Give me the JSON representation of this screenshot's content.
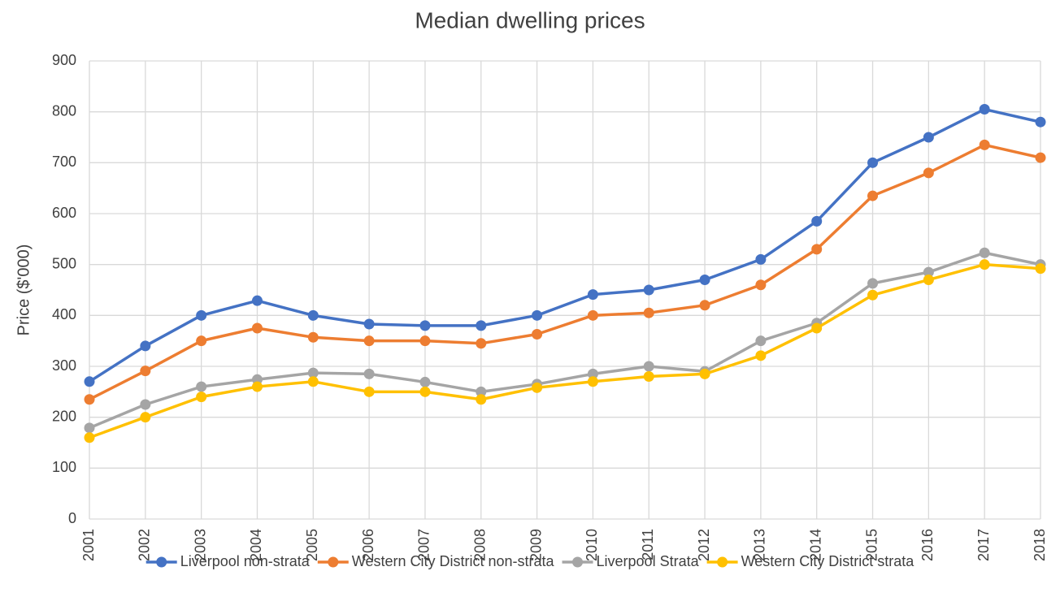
{
  "chart_data": {
    "type": "line",
    "title": "Median dwelling prices",
    "y_label": "Price ($'000)",
    "categories": [
      "2001",
      "2002",
      "2003",
      "2004",
      "2005",
      "2006",
      "2007",
      "2008",
      "2009",
      "2010",
      "2011",
      "2012",
      "2013",
      "2014",
      "2015",
      "2016",
      "2017",
      "2018"
    ],
    "series": [
      {
        "name": "Liverpool non-strata",
        "color": "#4472c4",
        "values": [
          270,
          340,
          400,
          429,
          400,
          383,
          380,
          380,
          400,
          441,
          450,
          470,
          510,
          585,
          700,
          750,
          805,
          780
        ]
      },
      {
        "name": "Western City District non-strata",
        "color": "#ed7d31",
        "values": [
          235,
          291,
          350,
          375,
          357,
          350,
          350,
          345,
          363,
          400,
          405,
          420,
          460,
          530,
          635,
          680,
          735,
          710
        ]
      },
      {
        "name": "Liverpool Strata",
        "color": "#a5a5a5",
        "values": [
          179,
          225,
          260,
          274,
          287,
          285,
          269,
          250,
          265,
          285,
          300,
          290,
          350,
          385,
          463,
          485,
          523,
          500
        ]
      },
      {
        "name": "Western City District strata",
        "color": "#ffc000",
        "values": [
          160,
          200,
          240,
          260,
          270,
          250,
          250,
          235,
          258,
          270,
          280,
          285,
          321,
          375,
          440,
          470,
          500,
          492
        ]
      }
    ],
    "ylim": [
      0,
      900
    ],
    "yticks": [
      0,
      100,
      200,
      300,
      400,
      500,
      600,
      700,
      800,
      900
    ],
    "grid": true,
    "legend": "bottom"
  }
}
